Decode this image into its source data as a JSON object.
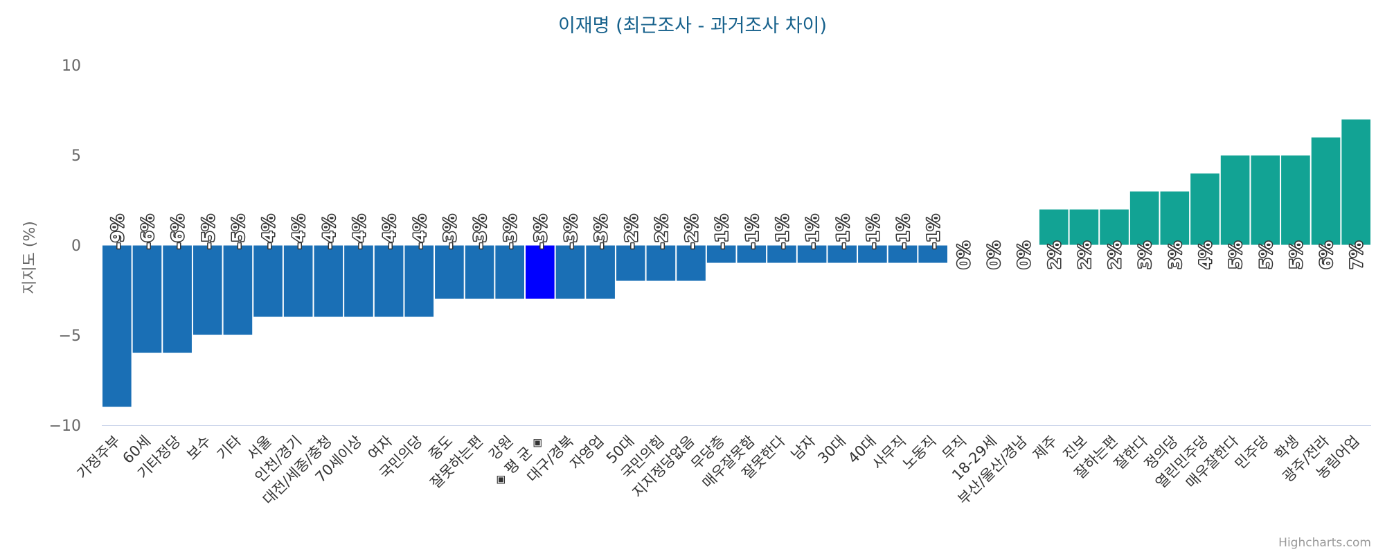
{
  "chart_data": {
    "type": "bar",
    "title": "이재명 (최근조사 - 과거조사 차이)",
    "ylabel": "지지도 (%)",
    "ylim": [
      -10,
      10
    ],
    "yticks": [
      10,
      5,
      0,
      -5,
      -10
    ],
    "ytick_labels": [
      "10",
      "5",
      "0",
      "−5",
      "−10"
    ],
    "grid": false,
    "credit": "Highcharts.com",
    "colors": {
      "negative": "#1a6fb5",
      "positive": "#12a394",
      "highlight": "#0000ff",
      "axis": "#ccd6eb"
    },
    "categories": [
      "가정주부",
      "60세",
      "기타정당",
      "보수",
      "기타",
      "서울",
      "인천/경기",
      "대전/세종/충청",
      "70세이상",
      "여자",
      "국민의당",
      "중도",
      "잘못하는편",
      "강원",
      "◈ 평 균 ◈",
      "대구/경북",
      "자영업",
      "50대",
      "국민의힘",
      "지지정당없음",
      "무당층",
      "매우잘못함",
      "잘못한다",
      "남자",
      "30대",
      "40대",
      "사무직",
      "노동직",
      "무직",
      "18-29세",
      "부산/울산/경남",
      "제주",
      "진보",
      "잘하는편",
      "잘한다",
      "정의당",
      "열린민주당",
      "매우잘한다",
      "민주당",
      "학생",
      "광주/전라",
      "농림어업"
    ],
    "values": [
      -9,
      -6,
      -6,
      -5,
      -5,
      -4,
      -4,
      -4,
      -4,
      -4,
      -4,
      -3,
      -3,
      -3,
      -3,
      -3,
      -3,
      -2,
      -2,
      -2,
      -1,
      -1,
      -1,
      -1,
      -1,
      -1,
      -1,
      -1,
      0,
      0,
      0,
      2,
      2,
      2,
      3,
      3,
      4,
      5,
      5,
      5,
      6,
      7
    ],
    "data_labels": [
      "-9%",
      "-6%",
      "-6%",
      "-5%",
      "-5%",
      "-4%",
      "-4%",
      "-4%",
      "-4%",
      "-4%",
      "-4%",
      "-3%",
      "-3%",
      "-3%",
      "-3%",
      "-3%",
      "-3%",
      "-2%",
      "-2%",
      "-2%",
      "-1%",
      "-1%",
      "-1%",
      "-1%",
      "-1%",
      "-1%",
      "-1%",
      "-1%",
      "0%",
      "0%",
      "0%",
      "2%",
      "2%",
      "2%",
      "3%",
      "3%",
      "4%",
      "5%",
      "5%",
      "5%",
      "6%",
      "7%"
    ],
    "highlight_category": "◈ 평 균 ◈"
  }
}
